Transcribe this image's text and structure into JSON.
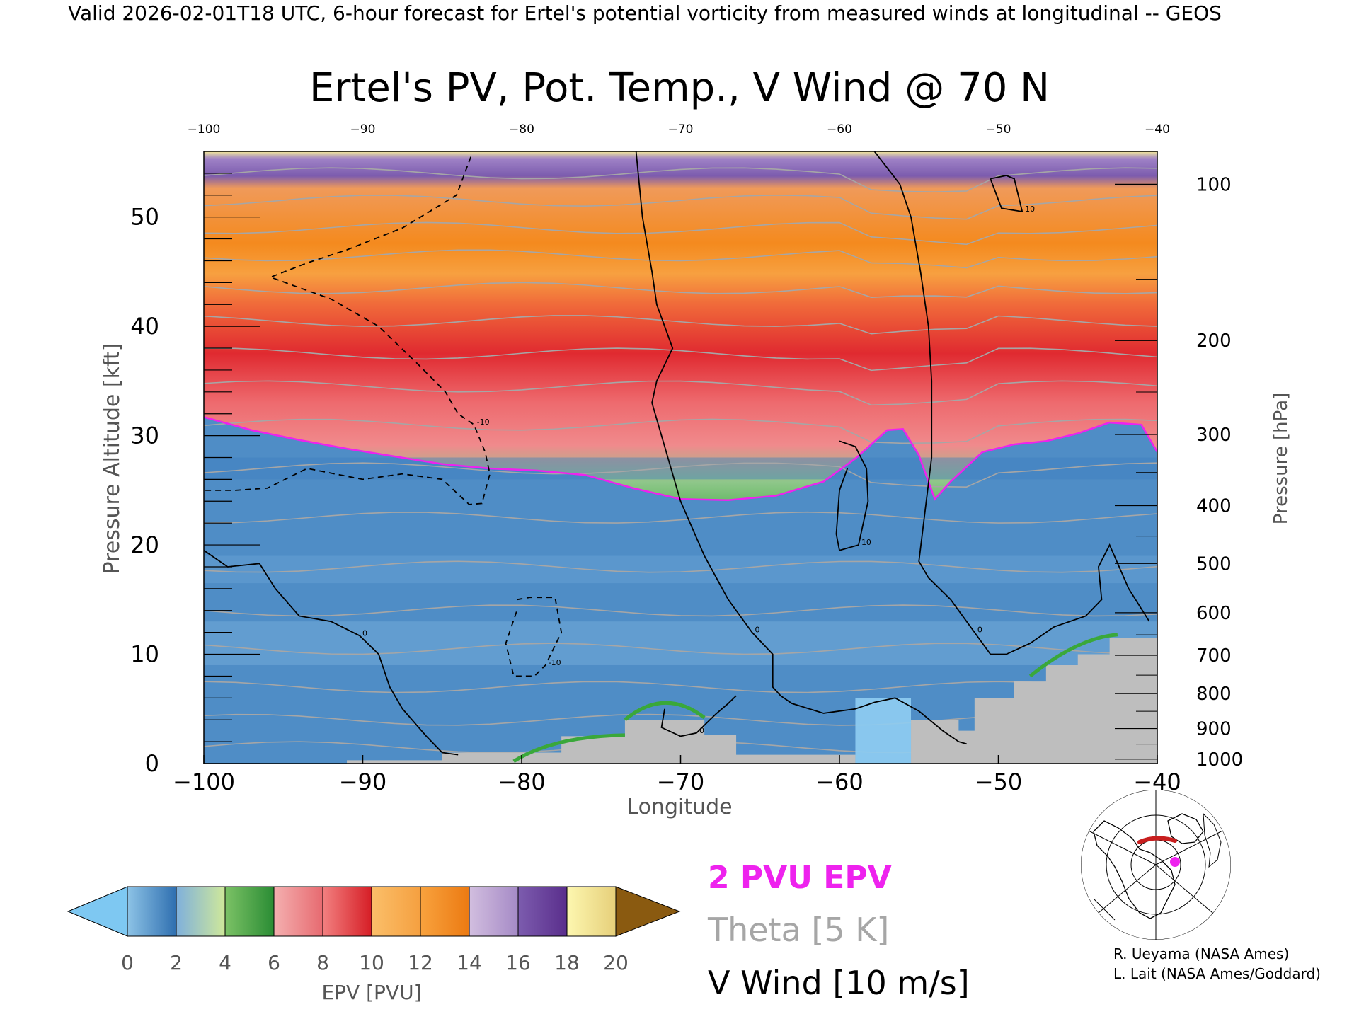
{
  "header": "Valid 2026-02-01T18 UTC, 6-hour forecast for Ertel's potential vorticity from measured winds at longitudinal -- GEOS",
  "chart_data": {
    "type": "heatmap",
    "title": "Ertel's PV, Pot. Temp., V Wind @ 70 N",
    "xlabel": "Longitude",
    "ylabel": "Pressure Altitude [kft]",
    "y2label": "Pressure [hPa]",
    "xlim": [
      -100,
      -40
    ],
    "ylim": [
      0,
      56
    ],
    "x_ticks": [
      "−100",
      "−90",
      "−80",
      "−70",
      "−60",
      "−50",
      "−40"
    ],
    "x_ticks_top": [
      "−100",
      "−90",
      "−80",
      "−70",
      "−60",
      "−50",
      "−40"
    ],
    "y_ticks": [
      "0",
      "10",
      "20",
      "30",
      "40",
      "50"
    ],
    "pressure_ticks": [
      {
        "label": "100",
        "kft": 53.0
      },
      {
        "label": "200",
        "kft": 38.7
      },
      {
        "label": "300",
        "kft": 30.1
      },
      {
        "label": "400",
        "kft": 23.6
      },
      {
        "label": "500",
        "kft": 18.3
      },
      {
        "label": "600",
        "kft": 13.8
      },
      {
        "label": "700",
        "kft": 9.9
      },
      {
        "label": "800",
        "kft": 6.4
      },
      {
        "label": "900",
        "kft": 3.2
      },
      {
        "label": "1000",
        "kft": 0.4
      }
    ],
    "pv_2pvu_contour": {
      "lon": [
        -100,
        -97,
        -94,
        -91,
        -88,
        -85,
        -82,
        -79,
        -76,
        -73,
        -70,
        -67,
        -64,
        -61,
        -59,
        -57,
        -56,
        -55,
        -54,
        -53,
        -51,
        -49,
        -47,
        -45,
        -43,
        -41,
        -40
      ],
      "kft": [
        31.7,
        30.5,
        29.6,
        28.8,
        28.1,
        27.4,
        27.0,
        26.8,
        26.4,
        25.2,
        24.2,
        24.1,
        24.5,
        25.8,
        27.9,
        30.5,
        30.6,
        28.2,
        24.2,
        25.8,
        28.5,
        29.2,
        29.5,
        30.2,
        31.2,
        31.0,
        28.5
      ]
    },
    "wind_contours": [
      {
        "value": "0",
        "lon": [
          -57.8,
          -56.2,
          -55.5,
          -54.9,
          -54.4,
          -54.2,
          -54.2,
          -55,
          -54.4,
          -53,
          -51.5,
          -50.5,
          -49.5,
          -48,
          -46.5,
          -44.5,
          -43.5,
          -43.7,
          -43,
          -41.8,
          -40.5
        ],
        "kft": [
          56,
          53,
          50,
          45,
          40,
          35,
          28,
          18.5,
          17,
          15,
          12,
          10,
          10,
          11,
          12.5,
          13.5,
          15,
          18,
          20,
          16,
          13
        ]
      },
      {
        "value": "0",
        "lon": [
          -72.8,
          -72.4,
          -71.8,
          -71.5,
          -70.5,
          -70.5,
          -71.5,
          -71.8,
          -71.2,
          -70,
          -68.5,
          -67,
          -65.5,
          -64.2,
          -64.2,
          -63.7,
          -63,
          -61,
          -59,
          -57.8,
          -56.5,
          -55,
          -53.5,
          -52.5,
          -52
        ],
        "kft": [
          56,
          50,
          45,
          42,
          38,
          38,
          35,
          33,
          30,
          24,
          19,
          15,
          12,
          10,
          7,
          6.2,
          5.5,
          4.6,
          5,
          5.6,
          6,
          4.8,
          3,
          2,
          1.8
        ]
      },
      {
        "value": "0",
        "lon": [
          -100,
          -98.5,
          -96.5,
          -95.5,
          -94,
          -92,
          -90.2,
          -89,
          -88.3,
          -87.5,
          -86,
          -85,
          -84
        ],
        "kft": [
          19.5,
          18,
          18.3,
          16,
          13.5,
          13,
          11.7,
          10,
          7,
          5,
          2.5,
          1,
          0.8
        ]
      },
      {
        "value": "0",
        "lon": [
          -66.5,
          -67,
          -67.8,
          -69,
          -70,
          -71.2,
          -71
        ],
        "kft": [
          6.2,
          5.5,
          4.5,
          2.8,
          2.5,
          3.3,
          5
        ]
      },
      {
        "value": "10",
        "lon": [
          -60,
          -59,
          -58.3,
          -58.2,
          -58.8,
          -60,
          -60.2,
          -60,
          -59.5
        ],
        "kft": [
          29.5,
          29,
          27,
          24,
          20,
          19.5,
          21,
          25,
          27
        ]
      },
      {
        "value": "10",
        "lon": [
          -50.5,
          -49.5,
          -49,
          -48.5,
          -49.8,
          -50.5
        ],
        "kft": [
          53.5,
          53.8,
          53.5,
          50.5,
          50.8,
          53.5
        ]
      },
      {
        "value": "-10",
        "lon": [
          -83.2,
          -84.1,
          -87.5,
          -91,
          -93.5,
          -95.8,
          -94.5,
          -92,
          -89,
          -86.5,
          -84.8,
          -84,
          -83,
          -82.3,
          -82,
          -82.5,
          -83.3,
          -85,
          -87.5,
          -90,
          -93.5,
          -96,
          -98,
          -100
        ],
        "kft": [
          55.5,
          52,
          49,
          47,
          45.8,
          44.5,
          43.8,
          42.5,
          40,
          36.5,
          34,
          32,
          31,
          28.5,
          26.5,
          23.8,
          23.7,
          26,
          26.5,
          26,
          27,
          25.2,
          25,
          25
        ]
      },
      {
        "value": "-10",
        "lon": [
          -80.3,
          -79.5,
          -77.9,
          -77.5,
          -78.5,
          -79.2,
          -80.5,
          -81,
          -80.3
        ],
        "kft": [
          15,
          15.2,
          15.2,
          12,
          9,
          8,
          8,
          11,
          14
        ]
      }
    ],
    "theta_isentropes_K": [
      "290",
      "300",
      "310",
      "320",
      "330",
      "340",
      "350",
      "360",
      "370",
      "380",
      "390",
      "400",
      "410"
    ],
    "colorbar": {
      "label": "EPV [PVU]",
      "ticks": [
        "0",
        "2",
        "4",
        "6",
        "8",
        "10",
        "12",
        "14",
        "16",
        "18",
        "20"
      ]
    },
    "legend": {
      "pv": "2 PVU EPV",
      "theta": "Theta [5 K]",
      "wind": "V Wind [10 m/s]"
    },
    "colors": {
      "pv_contour": "#ee22ee",
      "theta": "#a6a6a6",
      "wind": "#000000",
      "terrain": "#bebebe",
      "under": "#7ec8f2",
      "over": "#8a5a10"
    }
  },
  "credits": [
    "R. Ueyama (NASA Ames)",
    "L. Lait (NASA Ames/Goddard)"
  ]
}
